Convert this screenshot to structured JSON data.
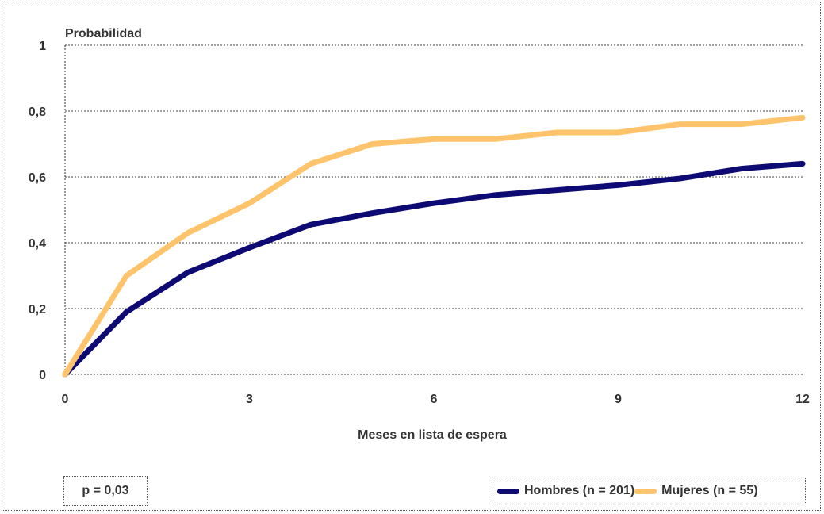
{
  "chart_data": {
    "type": "line",
    "ylabel": "Probabilidad",
    "xlabel": "Meses en lista de espera",
    "xlim": [
      0,
      12
    ],
    "ylim": [
      0,
      1
    ],
    "x_ticks": [
      "0",
      "3",
      "6",
      "9",
      "12"
    ],
    "y_ticks": [
      "0",
      "0,2",
      "0,4",
      "0,6",
      "0,8",
      "1"
    ],
    "grid": "horizontal dotted",
    "x": [
      0,
      1,
      2,
      3,
      4,
      5,
      6,
      7,
      8,
      9,
      10,
      11,
      12
    ],
    "series": [
      {
        "name": "Hombres (n = 201)",
        "color": "#0d0a73",
        "values": [
          0,
          0.19,
          0.31,
          0.385,
          0.455,
          0.49,
          0.52,
          0.545,
          0.56,
          0.575,
          0.595,
          0.625,
          0.64
        ]
      },
      {
        "name": "Mujeres (n = 55)",
        "color": "#ffc46b",
        "values": [
          0,
          0.3,
          0.43,
          0.52,
          0.64,
          0.7,
          0.715,
          0.715,
          0.735,
          0.735,
          0.76,
          0.76,
          0.78
        ]
      }
    ],
    "annotation": "p = 0,03",
    "legend_position": "bottom-right"
  }
}
